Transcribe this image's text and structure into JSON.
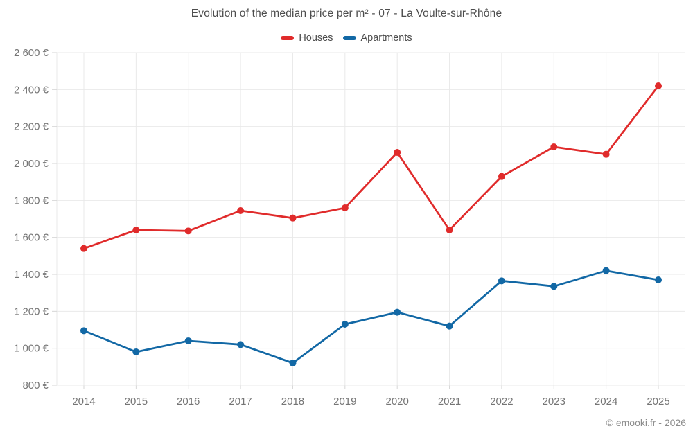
{
  "chart_data": {
    "type": "line",
    "title": "Evolution of the median price per m² - 07 - La Voulte-sur-Rhône",
    "categories": [
      "2014",
      "2015",
      "2016",
      "2017",
      "2018",
      "2019",
      "2020",
      "2021",
      "2022",
      "2023",
      "2024",
      "2025"
    ],
    "series": [
      {
        "name": "Houses",
        "color": "#e02b2b",
        "values": [
          1540,
          1640,
          1635,
          1745,
          1705,
          1760,
          2060,
          1640,
          1930,
          2090,
          2050,
          2420
        ]
      },
      {
        "name": "Apartments",
        "color": "#1268a5",
        "values": [
          1095,
          980,
          1040,
          1020,
          920,
          1130,
          1195,
          1120,
          1365,
          1335,
          1420,
          1370
        ]
      }
    ],
    "xlabel": "",
    "ylabel": "",
    "ylim": [
      800,
      2600
    ],
    "ystep": 200,
    "y_tick_suffix": " €",
    "grid": true,
    "legend_position": "top",
    "attribution": "© emooki.fr - 2026"
  }
}
